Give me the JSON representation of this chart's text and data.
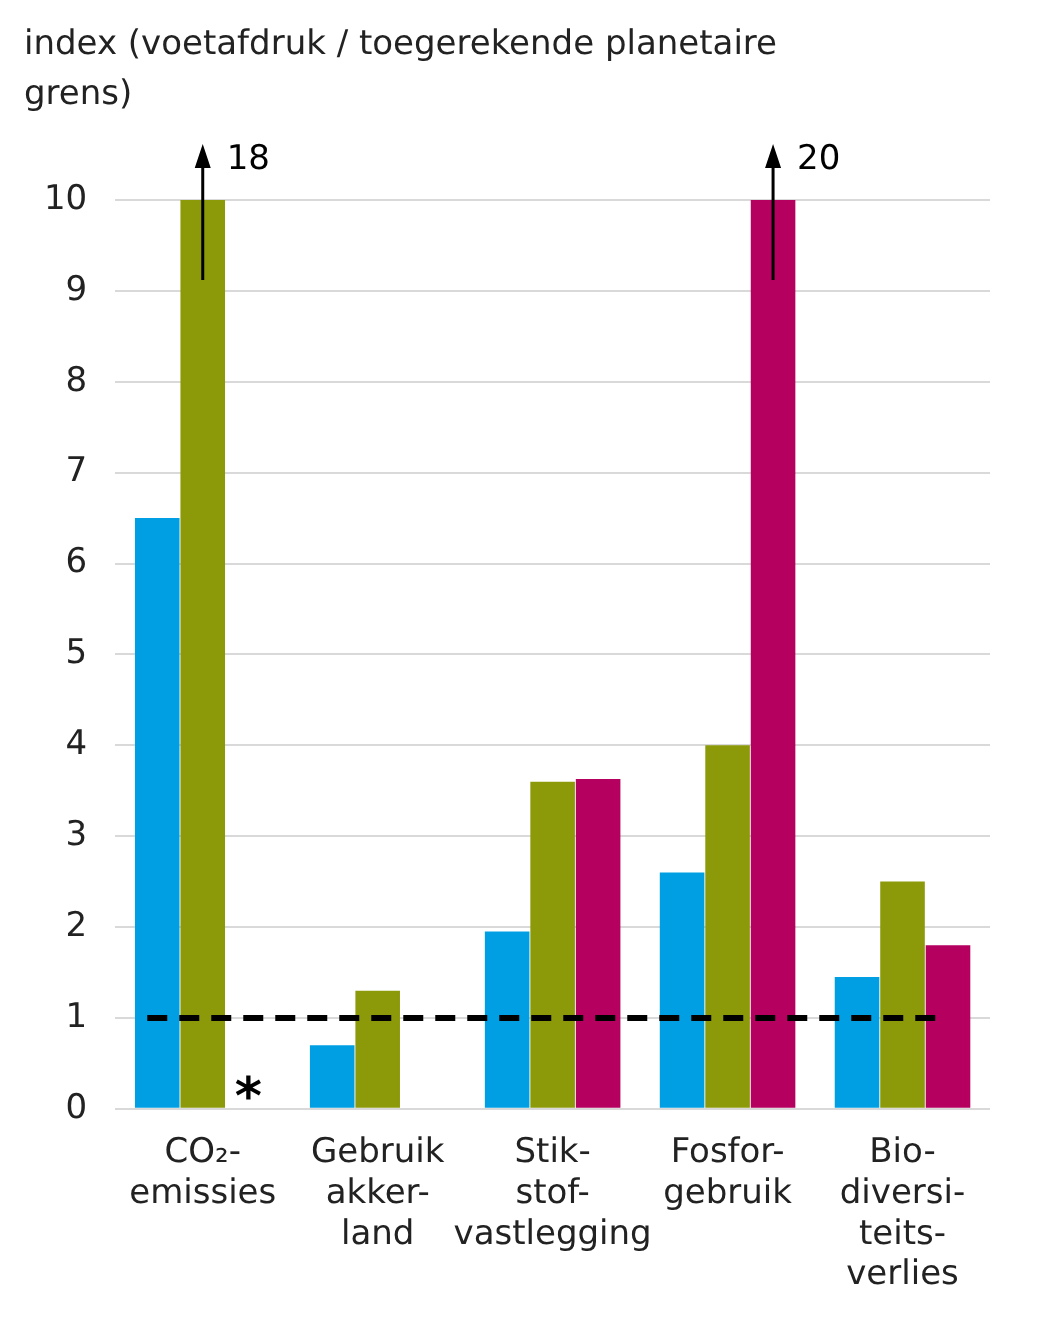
{
  "chart_data": {
    "type": "bar",
    "ylabel": "index (voetafdruk / toegerekende planetaire grens)",
    "categories": [
      "CO₂-\nemissies",
      "Gebruik\nakker-\nland",
      "Stik-\nstof-\nvastlegging",
      "Fosfor-\ngebruik",
      "Bio-\ndiversi-\nteits-\nverlies"
    ],
    "series": [
      {
        "color": "#009fe3",
        "values": [
          6.5,
          0.7,
          1.95,
          2.6,
          1.45
        ]
      },
      {
        "color": "#8c9a0a",
        "values": [
          10,
          1.3,
          3.6,
          4.0,
          2.5
        ]
      },
      {
        "color": "#b5005f",
        "values": [
          null,
          null,
          3.63,
          10,
          1.8
        ]
      }
    ],
    "ylim": [
      0,
      10
    ],
    "yticks": [
      0,
      1,
      2,
      3,
      4,
      5,
      6,
      7,
      8,
      9,
      10
    ],
    "grid": "y",
    "legend": false,
    "ref_lines": [
      {
        "axis": "y",
        "value": 1,
        "color": "#000000",
        "line_style": "dashed"
      }
    ],
    "annotations": [
      "18",
      "20",
      {
        "text": "*",
        "x": "CO₂-\nemissies",
        "y": 0
      }
    ]
  }
}
